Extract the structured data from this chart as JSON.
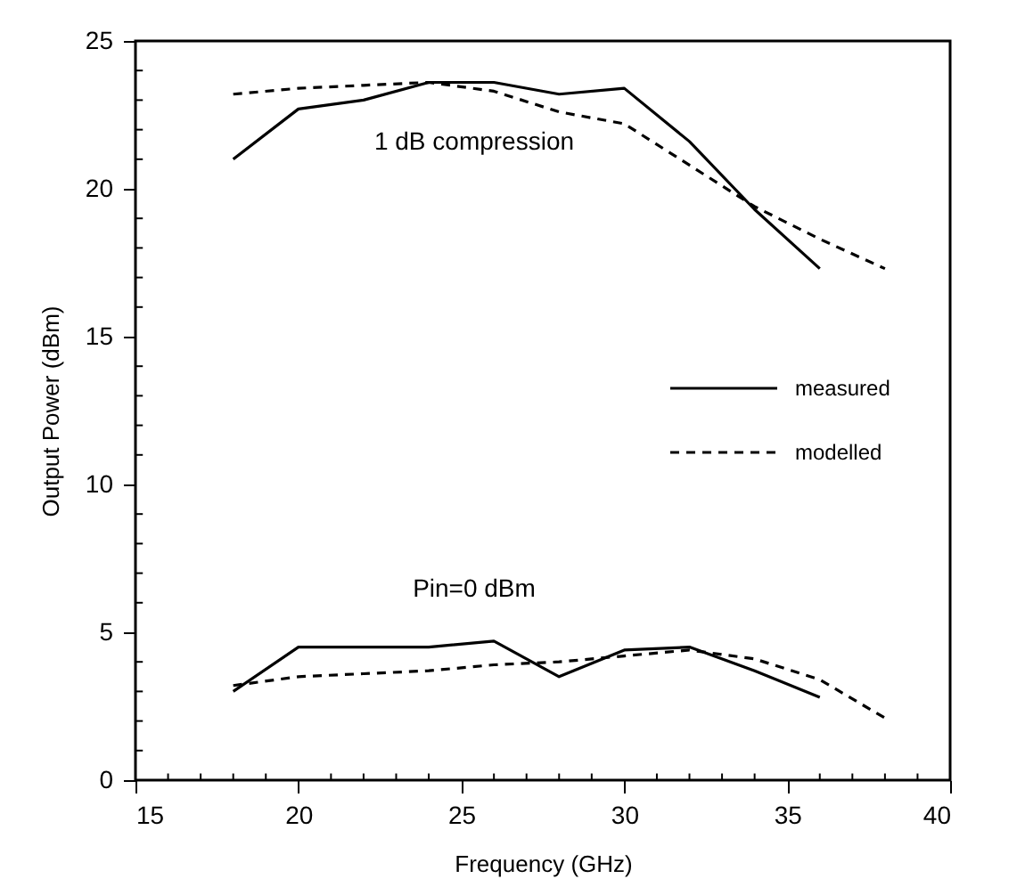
{
  "chart_data": {
    "type": "line",
    "xlabel": "Frequency (GHz)",
    "ylabel": "Output Power (dBm)",
    "xlim": [
      15,
      40
    ],
    "ylim": [
      0,
      25
    ],
    "xticks": [
      15,
      20,
      25,
      30,
      35,
      40
    ],
    "yticks": [
      0,
      5,
      10,
      15,
      20,
      25
    ],
    "legend": "right",
    "marker": "none",
    "annotations": [
      "1 dB compression",
      "Pin=0 dBm"
    ],
    "series": [
      {
        "name": "measured",
        "color": "#000000",
        "line_style": "solid",
        "x": [
          18,
          20,
          22,
          24,
          26,
          28,
          30,
          32,
          34,
          36
        ],
        "values": [
          21.0,
          22.7,
          23.0,
          23.6,
          23.6,
          23.2,
          23.4,
          21.6,
          19.3,
          17.3
        ]
      },
      {
        "name": "modelled",
        "color": "#000000",
        "line_style": "dashed",
        "x": [
          18,
          20,
          22,
          24,
          26,
          28,
          30,
          32,
          34,
          36,
          38
        ],
        "values": [
          23.2,
          23.4,
          23.5,
          23.6,
          23.3,
          22.6,
          22.2,
          20.8,
          19.4,
          18.3,
          17.3
        ]
      },
      {
        "color": "#000000",
        "line_style": "solid",
        "x": [
          18,
          20,
          22,
          24,
          26,
          28,
          30,
          32,
          34,
          36
        ],
        "values": [
          3.0,
          4.5,
          4.5,
          4.5,
          4.7,
          3.5,
          4.4,
          4.5,
          3.7,
          2.8
        ]
      },
      {
        "color": "#000000",
        "line_style": "dashed",
        "x": [
          18,
          20,
          22,
          24,
          26,
          28,
          30,
          32,
          34,
          36,
          38
        ],
        "values": [
          3.2,
          3.5,
          3.6,
          3.7,
          3.9,
          4.0,
          4.2,
          4.4,
          4.1,
          3.4,
          2.1
        ]
      }
    ]
  }
}
